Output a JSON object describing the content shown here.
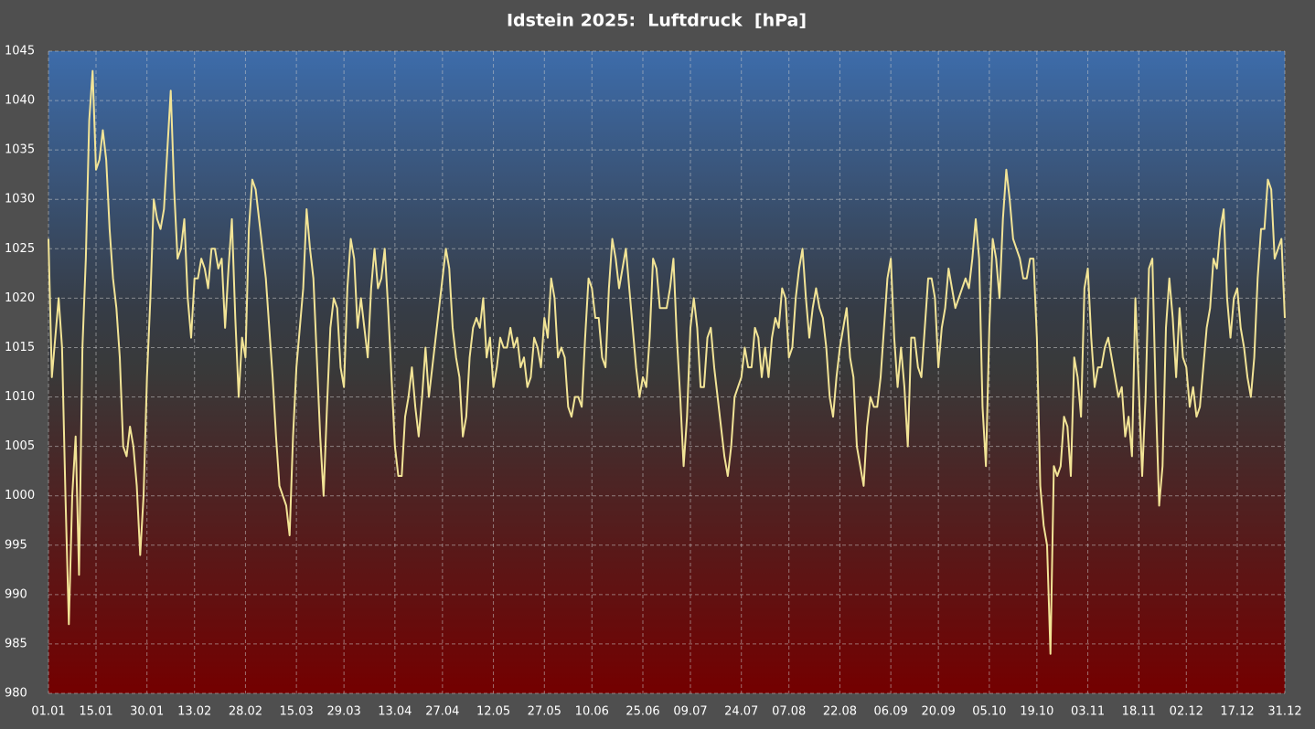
{
  "chart_data": {
    "type": "line",
    "title": "Idstein 2025:  Luftdruck  [hPa]",
    "categories": [
      "01.01",
      null,
      null,
      null,
      null,
      null,
      null,
      null,
      null,
      null,
      null,
      null,
      null,
      null,
      "15.01",
      null,
      null,
      null,
      null,
      null,
      null,
      null,
      null,
      null,
      null,
      null,
      null,
      null,
      null,
      "30.01",
      null,
      null,
      null,
      null,
      null,
      null,
      null,
      null,
      null,
      null,
      null,
      null,
      null,
      "13.02",
      null,
      null,
      null,
      null,
      null,
      null,
      null,
      null,
      null,
      null,
      null,
      null,
      null,
      null,
      "28.02",
      null,
      null,
      null,
      null,
      null,
      null,
      null,
      null,
      null,
      null,
      null,
      null,
      null,
      null,
      "15.03",
      null,
      null,
      null,
      null,
      null,
      null,
      null,
      null,
      null,
      null,
      null,
      null,
      null,
      "29.03",
      null,
      null,
      null,
      null,
      null,
      null,
      null,
      null,
      null,
      null,
      null,
      null,
      null,
      null,
      "13.04",
      null,
      null,
      null,
      null,
      null,
      null,
      null,
      null,
      null,
      null,
      null,
      null,
      null,
      "27.04",
      null,
      null,
      null,
      null,
      null,
      null,
      null,
      null,
      null,
      null,
      null,
      null,
      null,
      null,
      "12.05",
      null,
      null,
      null,
      null,
      null,
      null,
      null,
      null,
      null,
      null,
      null,
      null,
      null,
      null,
      "27.05",
      null,
      null,
      null,
      null,
      null,
      null,
      null,
      null,
      null,
      null,
      null,
      null,
      null,
      "10.06",
      null,
      null,
      null,
      null,
      null,
      null,
      null,
      null,
      null,
      null,
      null,
      null,
      null,
      null,
      "25.06",
      null,
      null,
      null,
      null,
      null,
      null,
      null,
      null,
      null,
      null,
      null,
      null,
      null,
      "09.07",
      null,
      null,
      null,
      null,
      null,
      null,
      null,
      null,
      null,
      null,
      null,
      null,
      null,
      null,
      "24.07",
      null,
      null,
      null,
      null,
      null,
      null,
      null,
      null,
      null,
      null,
      null,
      null,
      null,
      "07.08",
      null,
      null,
      null,
      null,
      null,
      null,
      null,
      null,
      null,
      null,
      null,
      null,
      null,
      null,
      "22.08",
      null,
      null,
      null,
      null,
      null,
      null,
      null,
      null,
      null,
      null,
      null,
      null,
      null,
      null,
      "06.09",
      null,
      null,
      null,
      null,
      null,
      null,
      null,
      null,
      null,
      null,
      null,
      null,
      null,
      "20.09",
      null,
      null,
      null,
      null,
      null,
      null,
      null,
      null,
      null,
      null,
      null,
      null,
      null,
      null,
      "05.10",
      null,
      null,
      null,
      null,
      null,
      null,
      null,
      null,
      null,
      null,
      null,
      null,
      null,
      "19.10",
      null,
      null,
      null,
      null,
      null,
      null,
      null,
      null,
      null,
      null,
      null,
      null,
      null,
      null,
      "03.11",
      null,
      null,
      null,
      null,
      null,
      null,
      null,
      null,
      null,
      null,
      null,
      null,
      null,
      null,
      "18.11",
      null,
      null,
      null,
      null,
      null,
      null,
      null,
      null,
      null,
      null,
      null,
      null,
      null,
      "02.12",
      null,
      null,
      null,
      null,
      null,
      null,
      null,
      null,
      null,
      null,
      null,
      null,
      null,
      null,
      "17.12",
      null,
      null,
      null,
      null,
      null,
      null,
      null,
      null,
      null,
      null,
      null,
      null,
      null,
      "31.12"
    ],
    "values": [
      1026,
      1012,
      1016,
      1020,
      1015,
      1000,
      987,
      1000,
      1006,
      992,
      1015,
      1024,
      1038,
      1043,
      1033,
      1034,
      1037,
      1034,
      1027,
      1022,
      1019,
      1014,
      1005,
      1004,
      1007,
      1005,
      1001,
      994,
      1000,
      1012,
      1020,
      1030,
      1028,
      1027,
      1029,
      1035,
      1041,
      1031,
      1024,
      1025,
      1028,
      1020,
      1016,
      1022,
      1022,
      1024,
      1023,
      1021,
      1025,
      1025,
      1023,
      1024,
      1017,
      1023,
      1028,
      1018,
      1010,
      1016,
      1014,
      1027,
      1032,
      1031,
      1028,
      1025,
      1022,
      1017,
      1012,
      1006,
      1001,
      1000,
      999,
      996,
      1006,
      1013,
      1017,
      1021,
      1029,
      1025,
      1022,
      1014,
      1006,
      1000,
      1009,
      1017,
      1020,
      1019,
      1013,
      1011,
      1021,
      1026,
      1024,
      1017,
      1020,
      1017,
      1014,
      1021,
      1025,
      1021,
      1022,
      1025,
      1019,
      1012,
      1005,
      1002,
      1002,
      1008,
      1010,
      1013,
      1009,
      1006,
      1010,
      1015,
      1010,
      1013,
      1016,
      1019,
      1022,
      1025,
      1023,
      1017,
      1014,
      1012,
      1006,
      1008,
      1014,
      1017,
      1018,
      1017,
      1020,
      1014,
      1016,
      1011,
      1013,
      1016,
      1015,
      1015,
      1017,
      1015,
      1016,
      1013,
      1014,
      1011,
      1012,
      1016,
      1015,
      1013,
      1018,
      1016,
      1022,
      1020,
      1014,
      1015,
      1014,
      1009,
      1008,
      1010,
      1010,
      1009,
      1016,
      1022,
      1021,
      1018,
      1018,
      1014,
      1013,
      1021,
      1026,
      1024,
      1021,
      1023,
      1025,
      1021,
      1017,
      1013,
      1010,
      1012,
      1011,
      1016,
      1024,
      1023,
      1019,
      1019,
      1019,
      1021,
      1024,
      1016,
      1010,
      1003,
      1008,
      1017,
      1020,
      1017,
      1011,
      1011,
      1016,
      1017,
      1013,
      1010,
      1007,
      1004,
      1002,
      1005,
      1010,
      1011,
      1012,
      1015,
      1013,
      1013,
      1017,
      1016,
      1012,
      1015,
      1012,
      1016,
      1018,
      1017,
      1021,
      1020,
      1014,
      1015,
      1020,
      1023,
      1025,
      1020,
      1016,
      1019,
      1021,
      1019,
      1018,
      1015,
      1010,
      1008,
      1012,
      1015,
      1017,
      1019,
      1014,
      1012,
      1005,
      1003,
      1001,
      1007,
      1010,
      1009,
      1009,
      1012,
      1017,
      1022,
      1024,
      1016,
      1011,
      1015,
      1011,
      1005,
      1016,
      1016,
      1013,
      1012,
      1017,
      1022,
      1022,
      1020,
      1013,
      1017,
      1019,
      1023,
      1021,
      1019,
      1020,
      1021,
      1022,
      1021,
      1024,
      1028,
      1024,
      1009,
      1003,
      1017,
      1026,
      1024,
      1020,
      1028,
      1033,
      1030,
      1026,
      1025,
      1024,
      1022,
      1022,
      1024,
      1024,
      1016,
      1001,
      997,
      995,
      984,
      1003,
      1002,
      1003,
      1008,
      1007,
      1002,
      1014,
      1012,
      1008,
      1021,
      1023,
      1016,
      1011,
      1013,
      1013,
      1015,
      1016,
      1014,
      1012,
      1010,
      1011,
      1006,
      1008,
      1004,
      1020,
      1011,
      1002,
      1010,
      1023,
      1024,
      1010,
      999,
      1003,
      1017,
      1022,
      1018,
      1012,
      1019,
      1014,
      1013,
      1009,
      1011,
      1008,
      1009,
      1013,
      1017,
      1019,
      1024,
      1023,
      1027,
      1029,
      1020,
      1016,
      1020,
      1021,
      1017,
      1015,
      1012,
      1010,
      1014,
      1022,
      1027,
      1027,
      1032,
      1031,
      1024,
      1025,
      1026,
      1018
    ],
    "color": "#f2e496",
    "ylim": [
      980,
      1045
    ],
    "yticks": [
      980,
      985,
      990,
      995,
      1000,
      1005,
      1010,
      1015,
      1020,
      1025,
      1030,
      1035,
      1040,
      1045
    ],
    "grid": true
  }
}
